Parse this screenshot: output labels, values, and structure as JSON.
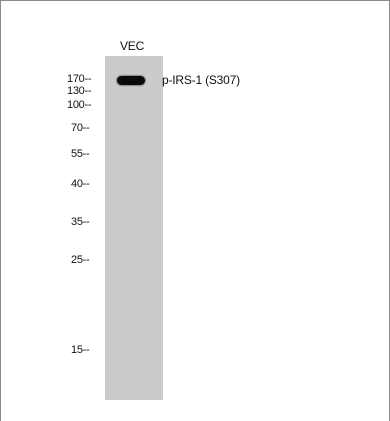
{
  "blot": {
    "lane_label": "VEC",
    "band_label": "p-IRS-1 (S307)",
    "markers": [
      "170--",
      "130--",
      "100--",
      "70--",
      "55--",
      "40--",
      "35--",
      "25--",
      "15--"
    ]
  },
  "colors": {
    "lane": "#cbcbcb",
    "band": "#0a0a0a",
    "border": "#8a8a8a"
  }
}
